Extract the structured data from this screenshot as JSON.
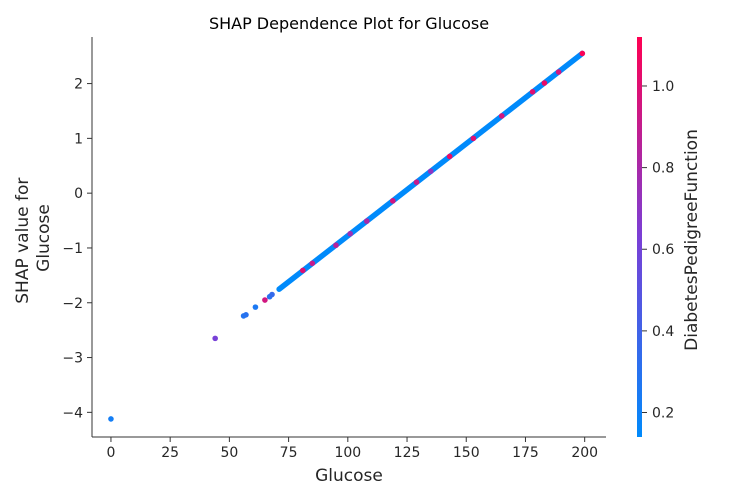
{
  "chart_data": {
    "type": "scatter",
    "title": "SHAP Dependence Plot for Glucose",
    "xlabel": "Glucose",
    "ylabel": [
      "SHAP value for",
      "Glucose"
    ],
    "colorbar_label": "DiabetesPedigreeFunction",
    "xlim": [
      -8,
      209
    ],
    "ylim": [
      -4.45,
      2.85
    ],
    "xticks": [
      0,
      25,
      50,
      75,
      100,
      125,
      150,
      175,
      200
    ],
    "yticks": [
      -4,
      -3,
      -2,
      -1,
      0,
      1,
      2
    ],
    "color_range": [
      0.14,
      1.12
    ],
    "colorbar_ticks": [
      0.2,
      0.4,
      0.6,
      0.8,
      1.0
    ],
    "grid": false,
    "colors": {
      "low": "#008afb",
      "mid": "#7a3fd6",
      "high": "#ff0052"
    },
    "trend": {
      "slope": 0.03362,
      "intercept": -4.14,
      "x_from": 71,
      "x_to": 199
    },
    "points": [
      {
        "x": 0,
        "y": -4.12,
        "c": 0.22
      },
      {
        "x": 44,
        "y": -2.65,
        "c": 0.62
      },
      {
        "x": 56,
        "y": -2.24,
        "c": 0.28
      },
      {
        "x": 57,
        "y": -2.22,
        "c": 0.3
      },
      {
        "x": 61,
        "y": -2.08,
        "c": 0.25
      },
      {
        "x": 65,
        "y": -1.95,
        "c": 0.95
      },
      {
        "x": 67,
        "y": -1.89,
        "c": 0.3
      },
      {
        "x": 68,
        "y": -1.85,
        "c": 0.35
      },
      {
        "x": 81,
        "y": -1.41,
        "c": 1.0
      },
      {
        "x": 85,
        "y": -1.28,
        "c": 0.9
      },
      {
        "x": 95,
        "y": -0.95,
        "c": 0.85
      },
      {
        "x": 101,
        "y": -0.74,
        "c": 0.75
      },
      {
        "x": 108,
        "y": -0.51,
        "c": 0.8
      },
      {
        "x": 119,
        "y": -0.14,
        "c": 0.95
      },
      {
        "x": 129,
        "y": 0.2,
        "c": 0.9
      },
      {
        "x": 135,
        "y": 0.4,
        "c": 0.7
      },
      {
        "x": 143,
        "y": 0.67,
        "c": 1.05
      },
      {
        "x": 153,
        "y": 1.0,
        "c": 1.0
      },
      {
        "x": 165,
        "y": 1.41,
        "c": 0.95
      },
      {
        "x": 178,
        "y": 1.85,
        "c": 1.0
      },
      {
        "x": 183,
        "y": 2.01,
        "c": 1.05
      },
      {
        "x": 189,
        "y": 2.21,
        "c": 0.95
      },
      {
        "x": 199,
        "y": 2.55,
        "c": 1.1
      }
    ]
  }
}
